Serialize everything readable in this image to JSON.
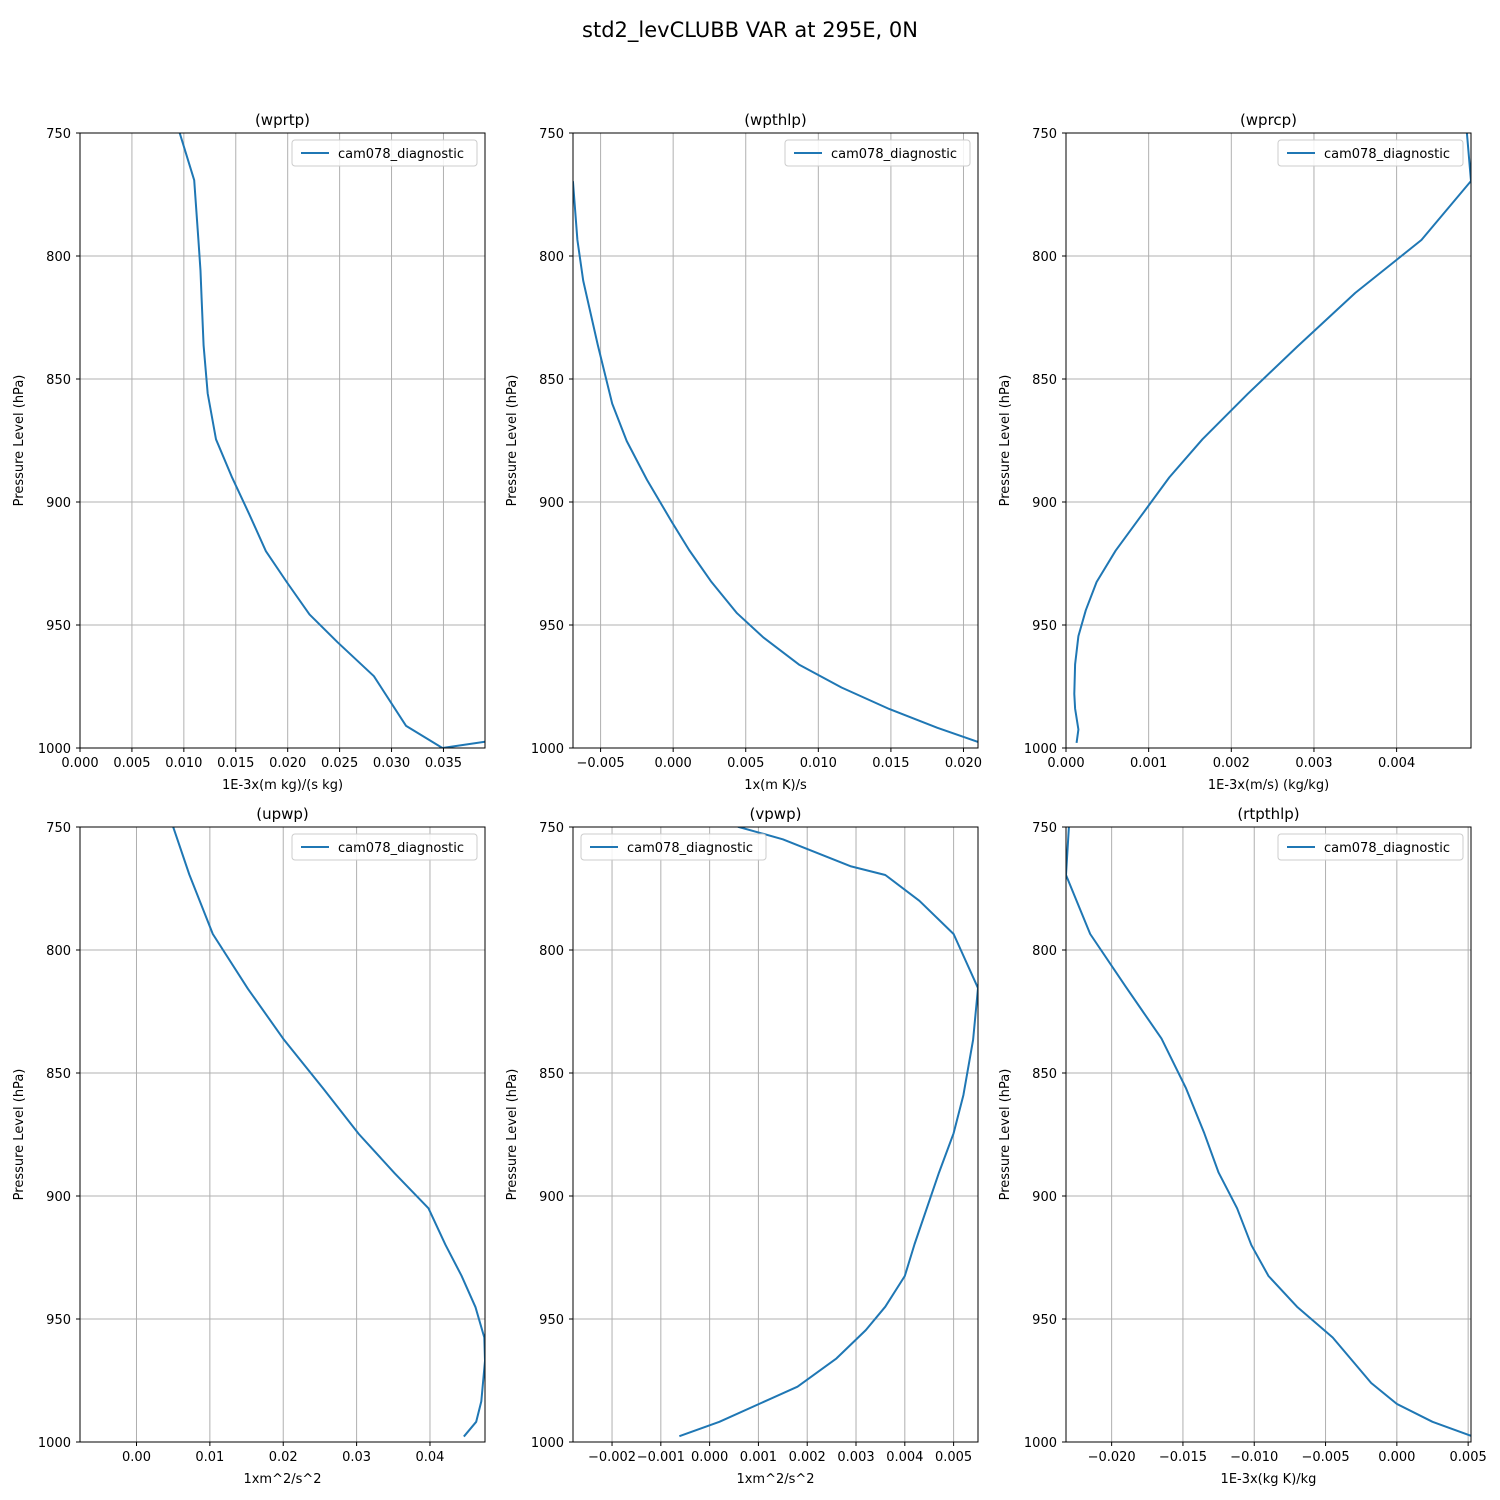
{
  "figure": {
    "title": "std2_levCLUBB VAR at 295E, 0N",
    "series_color": "#1f77b4"
  },
  "chart_data": [
    {
      "type": "line",
      "title": "(wprtp)",
      "xlabel": "1E-3x(m kg)/(s kg)",
      "ylabel": "Pressure Level (hPa)",
      "xlim": [
        0.0,
        0.039
      ],
      "ylim": [
        1000,
        750
      ],
      "xticks": [
        0.0,
        0.005,
        0.01,
        0.015,
        0.02,
        0.025,
        0.03,
        0.035
      ],
      "xtick_labels": [
        "0.000",
        "0.005",
        "0.010",
        "0.015",
        "0.020",
        "0.025",
        "0.030",
        "0.035"
      ],
      "yticks": [
        750,
        800,
        850,
        900,
        950,
        1000
      ],
      "ytick_labels": [
        "750",
        "800",
        "850",
        "900",
        "950",
        "1000"
      ],
      "grid": true,
      "legend_loc": "upper-right",
      "series": [
        {
          "name": "cam078_diagnostic",
          "x": [
            0.0096,
            0.011,
            0.0114,
            0.0116,
            0.0117,
            0.0119,
            0.0123,
            0.0131,
            0.0146,
            0.0163,
            0.0179,
            0.0199,
            0.0221,
            0.0248,
            0.0283,
            0.0314,
            0.0349,
            0.0389
          ],
          "y": [
            750.0,
            769.2,
            793.4,
            806.0,
            816.2,
            836.4,
            855.9,
            874.5,
            889.6,
            905.0,
            920.0,
            932.5,
            945.7,
            957.0,
            970.8,
            991.0,
            1000.0,
            997.5
          ]
        }
      ]
    },
    {
      "type": "line",
      "title": "(wpthlp)",
      "xlabel": "1x(m K)/s",
      "ylabel": "Pressure Level (hPa)",
      "xlim": [
        -0.0069,
        0.021
      ],
      "ylim": [
        1000,
        750
      ],
      "xticks": [
        -0.005,
        0.0,
        0.005,
        0.01,
        0.015,
        0.02
      ],
      "xtick_labels": [
        "−0.005",
        "0.000",
        "0.005",
        "0.010",
        "0.015",
        "0.020"
      ],
      "yticks": [
        750,
        800,
        850,
        900,
        950,
        1000
      ],
      "ytick_labels": [
        "750",
        "800",
        "850",
        "900",
        "950",
        "1000"
      ],
      "grid": true,
      "legend_loc": "upper-right",
      "series": [
        {
          "name": "cam078_diagnostic",
          "x": [
            -0.0069,
            -0.0066,
            -0.0062,
            -0.0052,
            -0.0042,
            -0.0032,
            -0.0018,
            -0.0001,
            0.0011,
            0.0026,
            0.0044,
            0.0062,
            0.0087,
            0.0116,
            0.0149,
            0.0182,
            0.021
          ],
          "y": [
            770.0,
            793.5,
            810.0,
            836.0,
            860.0,
            875.2,
            891.0,
            908.0,
            919.5,
            932.2,
            945.2,
            955.0,
            966.2,
            975.4,
            984.2,
            991.8,
            997.5
          ]
        }
      ]
    },
    {
      "type": "line",
      "title": "(wprcp)",
      "xlabel": "1E-3x(m/s) (kg/kg)",
      "ylabel": "Pressure Level (hPa)",
      "xlim": [
        0.0,
        0.0049
      ],
      "ylim": [
        1000,
        750
      ],
      "xticks": [
        0.0,
        0.001,
        0.002,
        0.003,
        0.004
      ],
      "xtick_labels": [
        "0.000",
        "0.001",
        "0.002",
        "0.003",
        "0.004"
      ],
      "yticks": [
        750,
        800,
        850,
        900,
        950,
        1000
      ],
      "ytick_labels": [
        "750",
        "800",
        "850",
        "900",
        "950",
        "1000"
      ],
      "grid": true,
      "legend_loc": "upper-right",
      "series": [
        {
          "name": "cam078_diagnostic",
          "x": [
            0.00485,
            0.0049,
            0.0043,
            0.0035,
            0.0028,
            0.0022,
            0.00165,
            0.00125,
            0.0009,
            0.0006,
            0.00037,
            0.00024,
            0.00015,
            0.00011,
            0.0001,
            0.00011,
            0.00015,
            0.00013
          ],
          "y": [
            750.0,
            769.5,
            793.5,
            815.0,
            836.8,
            856.0,
            874.5,
            890.0,
            906.0,
            919.8,
            932.5,
            944.0,
            954.5,
            966.0,
            978.0,
            984.0,
            992.5,
            997.5
          ]
        }
      ]
    },
    {
      "type": "line",
      "title": "(upwp)",
      "xlabel": "1xm^2/s^2",
      "ylabel": "Pressure Level (hPa)",
      "xlim": [
        -0.0077,
        0.0475
      ],
      "ylim": [
        1000,
        750
      ],
      "xticks": [
        0.0,
        0.01,
        0.02,
        0.03,
        0.04
      ],
      "xtick_labels": [
        "0.00",
        "0.01",
        "0.02",
        "0.03",
        "0.04"
      ],
      "yticks": [
        750,
        800,
        850,
        900,
        950,
        1000
      ],
      "ytick_labels": [
        "750",
        "800",
        "850",
        "900",
        "950",
        "1000"
      ],
      "grid": true,
      "legend_loc": "upper-right",
      "series": [
        {
          "name": "cam078_diagnostic",
          "x": [
            0.005,
            0.0072,
            0.0104,
            0.0152,
            0.0201,
            0.0255,
            0.0303,
            0.0352,
            0.0398,
            0.0421,
            0.0443,
            0.0462,
            0.0474,
            0.0475,
            0.047,
            0.0463,
            0.0447
          ],
          "y": [
            750.0,
            769.3,
            793.5,
            815.8,
            836.5,
            856.5,
            874.8,
            890.8,
            905.0,
            919.8,
            932.4,
            945.2,
            957.5,
            967.0,
            983.5,
            991.8,
            997.5
          ]
        }
      ]
    },
    {
      "type": "line",
      "title": "(vpwp)",
      "xlabel": "1xm^2/s^2",
      "ylabel": "Pressure Level (hPa)",
      "xlim": [
        -0.0028,
        0.0055
      ],
      "ylim": [
        1000,
        750
      ],
      "xticks": [
        -0.002,
        -0.001,
        0.0,
        0.001,
        0.002,
        0.003,
        0.004,
        0.005
      ],
      "xtick_labels": [
        "−0.002",
        "−0.001",
        "0.000",
        "0.001",
        "0.002",
        "0.003",
        "0.004",
        "0.005"
      ],
      "yticks": [
        750,
        800,
        850,
        900,
        950,
        1000
      ],
      "ytick_labels": [
        "750",
        "800",
        "850",
        "900",
        "950",
        "1000"
      ],
      "grid": true,
      "legend_loc": "upper-left",
      "series": [
        {
          "name": "cam078_diagnostic",
          "x": [
            0.0006,
            0.0015,
            0.0029,
            0.0036,
            0.0043,
            0.005,
            0.0055,
            0.0054,
            0.0052,
            0.005,
            0.0047,
            0.0042,
            0.004,
            0.0036,
            0.0032,
            0.0026,
            0.0018,
            0.0002,
            -0.0006
          ],
          "y": [
            750.0,
            755.0,
            766.0,
            769.5,
            780.0,
            793.5,
            815.5,
            836.5,
            859.0,
            874.5,
            890.5,
            919.5,
            932.5,
            945.0,
            954.5,
            966.0,
            977.5,
            991.8,
            997.5
          ]
        }
      ]
    },
    {
      "type": "line",
      "title": "(rtpthlp)",
      "xlabel": "1E-3x(kg K)/kg",
      "ylabel": "Pressure Level (hPa)",
      "xlim": [
        -0.0232,
        0.0052
      ],
      "ylim": [
        1000,
        750
      ],
      "xticks": [
        -0.02,
        -0.015,
        -0.01,
        -0.005,
        0.0,
        0.005
      ],
      "xtick_labels": [
        "−0.020",
        "−0.015",
        "−0.010",
        "−0.005",
        "0.000",
        "0.005"
      ],
      "yticks": [
        750,
        800,
        850,
        900,
        950,
        1000
      ],
      "ytick_labels": [
        "750",
        "800",
        "850",
        "900",
        "950",
        "1000"
      ],
      "grid": true,
      "legend_loc": "upper-right",
      "series": [
        {
          "name": "cam078_diagnostic",
          "x": [
            -0.023,
            -0.0232,
            -0.0215,
            -0.019,
            -0.0165,
            -0.0148,
            -0.0135,
            -0.0125,
            -0.0112,
            -0.0102,
            -0.009,
            -0.007,
            -0.0045,
            -0.0018,
            0.0,
            0.0025,
            0.0052
          ],
          "y": [
            750.0,
            769.5,
            793.5,
            815.0,
            836.0,
            856.0,
            874.5,
            890.5,
            905.0,
            920.0,
            932.5,
            945.0,
            957.5,
            976.0,
            984.5,
            991.8,
            997.5
          ]
        }
      ]
    }
  ]
}
